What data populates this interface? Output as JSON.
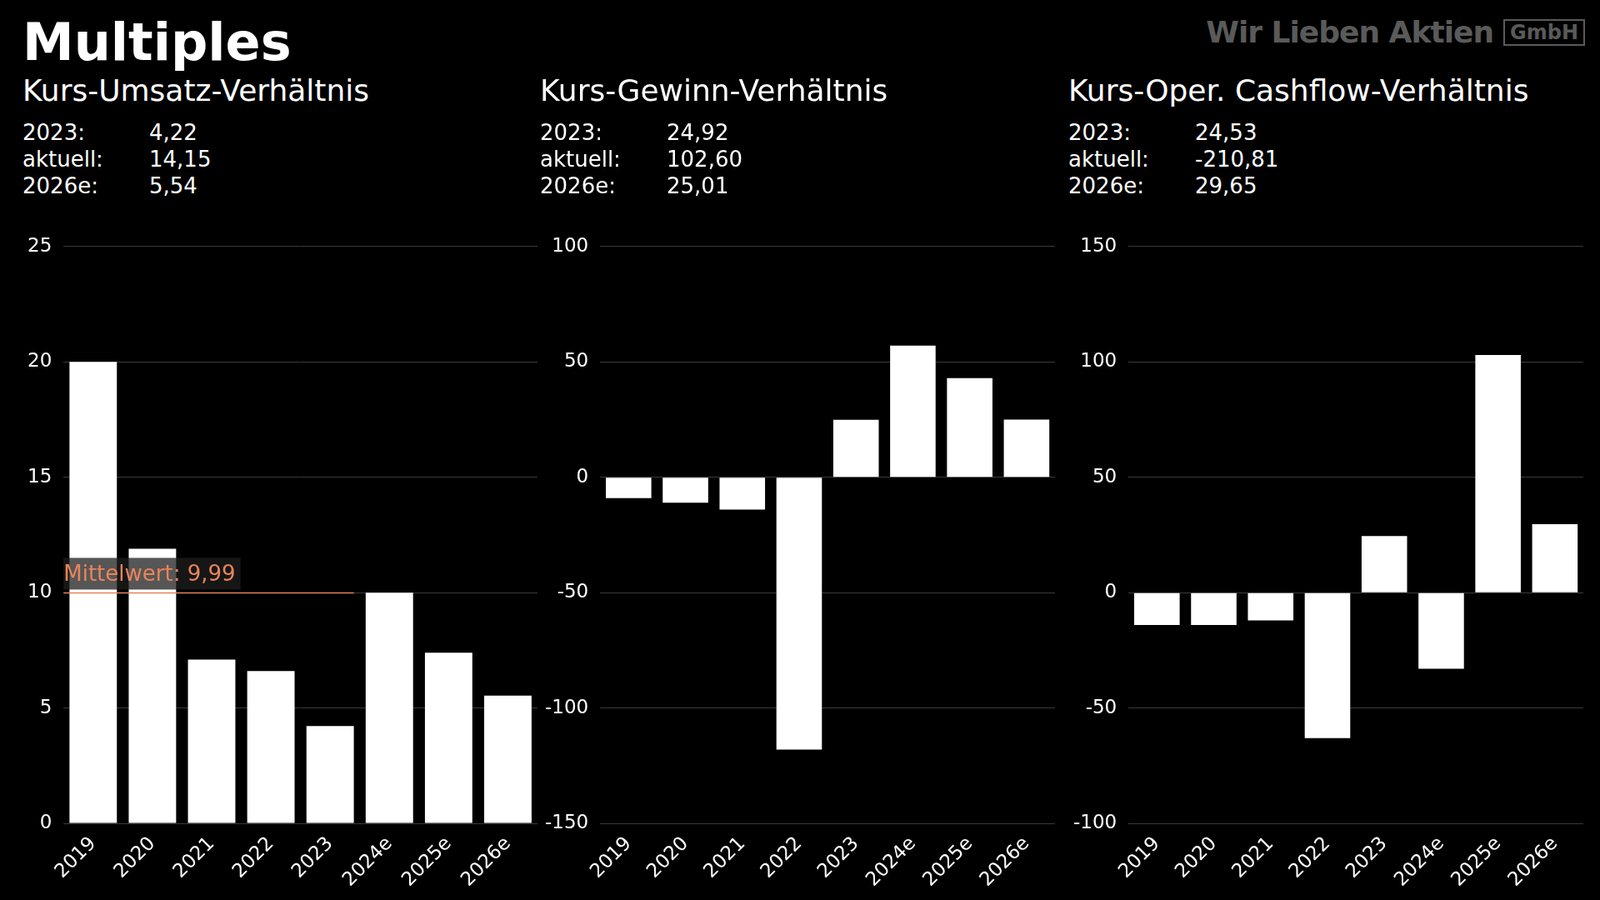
{
  "title": "Multiples",
  "brand": {
    "name": "Wir Lieben Aktien",
    "suffix": "GmbH"
  },
  "chart_data": [
    {
      "type": "bar",
      "title": "Kurs-Umsatz-Verhältnis",
      "stats": [
        {
          "label": "2023:",
          "value": "4,22"
        },
        {
          "label": "aktuell:",
          "value": "14,15"
        },
        {
          "label": "2026e:",
          "value": "5,54"
        }
      ],
      "categories": [
        "2019",
        "2020",
        "2021",
        "2022",
        "2023",
        "2024e",
        "2025e",
        "2026e"
      ],
      "values": [
        20.0,
        11.9,
        7.1,
        6.6,
        4.22,
        10.0,
        7.4,
        5.54
      ],
      "color": "#ffffff",
      "ylim": [
        0,
        25
      ],
      "yticks": [
        0,
        5,
        10,
        15,
        20,
        25
      ],
      "grid": true,
      "mean_line": {
        "value": 9.99,
        "label": "Mittelwert: 9,99",
        "color": "#e8845a"
      }
    },
    {
      "type": "bar",
      "title": "Kurs-Gewinn-Verhältnis",
      "stats": [
        {
          "label": "2023:",
          "value": "24,92"
        },
        {
          "label": "aktuell:",
          "value": "102,60"
        },
        {
          "label": "2026e:",
          "value": "25,01"
        }
      ],
      "categories": [
        "2019",
        "2020",
        "2021",
        "2022",
        "2023",
        "2024e",
        "2025e",
        "2026e"
      ],
      "values": [
        -9,
        -11,
        -14,
        -118,
        24.92,
        57,
        43,
        25.01
      ],
      "color": "#ffffff",
      "ylim": [
        -150,
        100
      ],
      "yticks": [
        -150,
        -100,
        -50,
        0,
        50,
        100
      ],
      "grid": true
    },
    {
      "type": "bar",
      "title": "Kurs-Oper. Cashflow-Verhältnis",
      "stats": [
        {
          "label": "2023:",
          "value": "24,53"
        },
        {
          "label": "aktuell:",
          "value": "-210,81"
        },
        {
          "label": "2026e:",
          "value": "29,65"
        }
      ],
      "categories": [
        "2019",
        "2020",
        "2021",
        "2022",
        "2023",
        "2024e",
        "2025e",
        "2026e"
      ],
      "values": [
        -14,
        -14,
        -12,
        -63,
        24.53,
        -33,
        103,
        29.65
      ],
      "color": "#ffffff",
      "ylim": [
        -100,
        150
      ],
      "yticks": [
        -100,
        -50,
        0,
        50,
        100,
        150
      ],
      "grid": true
    }
  ]
}
